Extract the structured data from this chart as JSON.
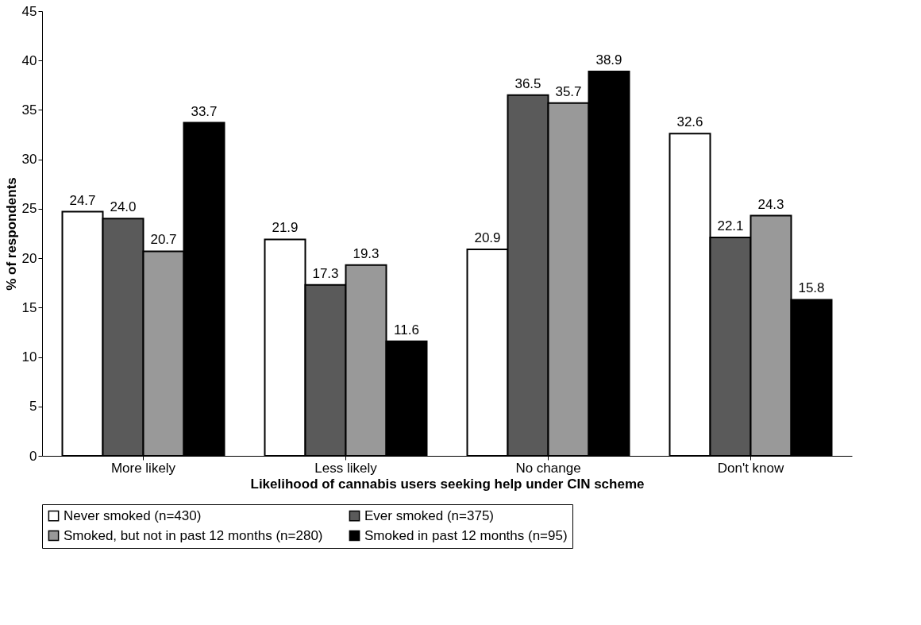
{
  "chart_data": {
    "type": "bar",
    "xlabel": "Likelihood of cannabis users seeking help under CIN scheme",
    "ylabel": "% of respondents",
    "categories": [
      "More likely",
      "Less likely",
      "No change",
      "Don't know"
    ],
    "series": [
      {
        "name": "Never smoked (n=430)",
        "color": "#ffffff",
        "values": [
          24.7,
          21.9,
          20.9,
          32.6
        ],
        "value_labels": [
          "24.7",
          "21.9",
          "20.9",
          "32.6"
        ]
      },
      {
        "name": "Ever smoked (n=375)",
        "color": "#5a5a5a",
        "values": [
          24.0,
          17.3,
          36.5,
          22.1
        ],
        "value_labels": [
          "24.0",
          "17.3",
          "36.5",
          "22.1"
        ]
      },
      {
        "name": "Smoked, but not in past 12 months (n=280)",
        "color": "#999999",
        "values": [
          20.7,
          19.3,
          35.7,
          24.3
        ],
        "value_labels": [
          "20.7",
          "19.3",
          "35.7",
          "24.3"
        ]
      },
      {
        "name": "Smoked in past 12 months (n=95)",
        "color": "#000000",
        "values": [
          33.7,
          11.6,
          38.9,
          15.8
        ],
        "value_labels": [
          "33.7",
          "11.6",
          "38.9",
          "15.8"
        ]
      }
    ],
    "ylim": [
      0,
      45
    ],
    "yticks": [
      0,
      5,
      10,
      15,
      20,
      25,
      30,
      35,
      40,
      45
    ],
    "grid": false,
    "legend": "bottom"
  }
}
